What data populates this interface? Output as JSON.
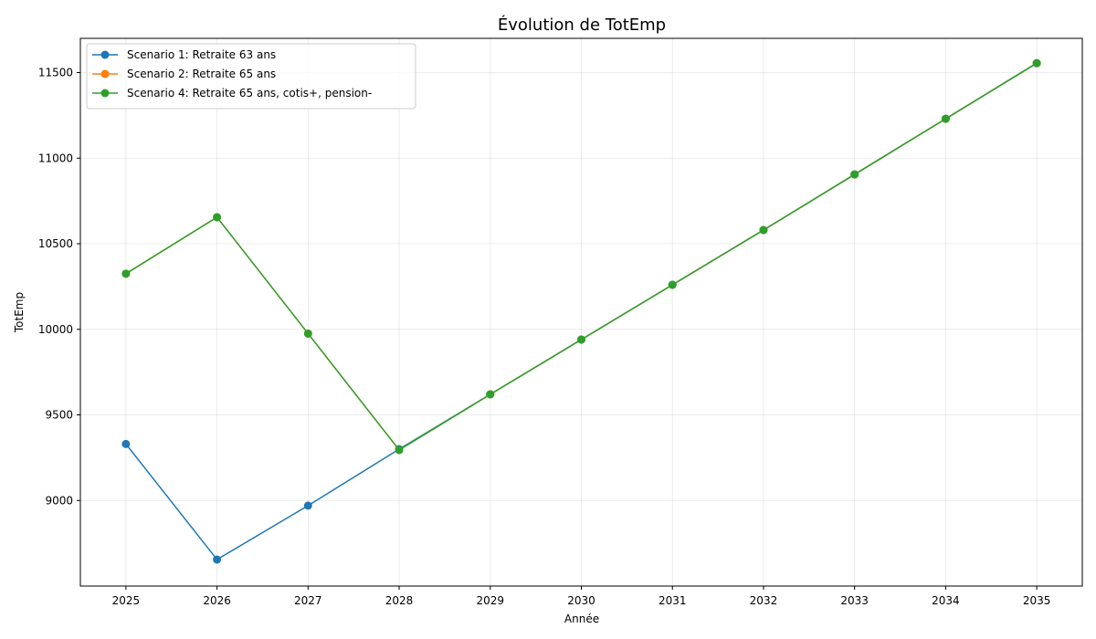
{
  "chart_data": {
    "type": "line",
    "title": "Évolution de TotEmp",
    "xlabel": "Année",
    "ylabel": "TotEmp",
    "x": [
      2025,
      2026,
      2027,
      2028,
      2029,
      2030,
      2031,
      2032,
      2033,
      2034,
      2035
    ],
    "xlim": [
      2024.5,
      2035.5
    ],
    "ylim": [
      8500,
      11700
    ],
    "yticks": [
      9000,
      9500,
      10000,
      10500,
      11000,
      11500
    ],
    "grid": true,
    "legend_position": "top-left",
    "series": [
      {
        "name": "Scenario 1: Retraite 63 ans",
        "color": "#1f77b4",
        "values": [
          9330,
          8655,
          8970,
          9300,
          9620,
          9940,
          10260,
          10580,
          10905,
          11230,
          11555
        ]
      },
      {
        "name": "Scenario 2: Retraite 65 ans",
        "color": "#ff7f0e",
        "values": [
          10325,
          10655,
          9975,
          9295,
          9620,
          9940,
          10260,
          10580,
          10905,
          11230,
          11555
        ]
      },
      {
        "name": "Scenario 4: Retraite 65 ans, cotis+, pension-",
        "color": "#2ca02c",
        "values": [
          10325,
          10655,
          9975,
          9295,
          9620,
          9940,
          10260,
          10580,
          10905,
          11230,
          11555
        ]
      }
    ]
  }
}
